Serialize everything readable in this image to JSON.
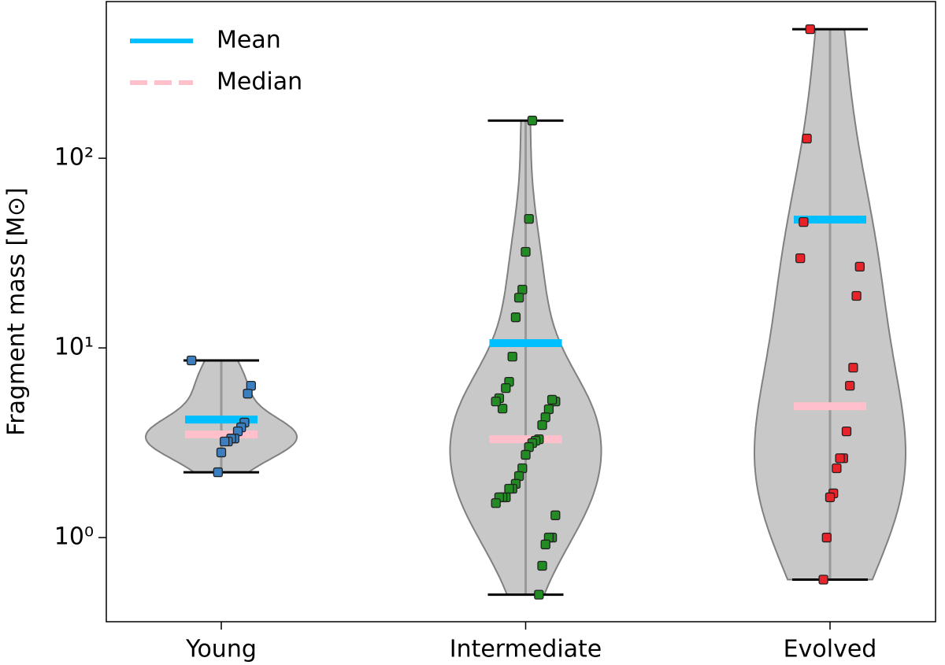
{
  "chart_data": {
    "type": "violin",
    "ylabel": "Fragment mass [M⊙]",
    "ylog": true,
    "ylim": [
      0.36,
      670
    ],
    "yticks": [
      {
        "value": 1,
        "label": "10⁰"
      },
      {
        "value": 10,
        "label": "10¹"
      },
      {
        "value": 100,
        "label": "10²"
      }
    ],
    "categories": [
      "Young",
      "Intermediate",
      "Evolved"
    ],
    "violin_color": "#c8c8c8",
    "legend": "upper left",
    "groups": [
      {
        "color": "#3b7fc0",
        "values": [
          8.59,
          6.32,
          5.74,
          4.04,
          3.81,
          3.63,
          3.33,
          3.33,
          3.21,
          3.21,
          2.81,
          2.21
        ]
      },
      {
        "color": "#238b23",
        "values": [
          158,
          47.9,
          32.1,
          20.3,
          18.4,
          14.5,
          9.0,
          6.63,
          6.14,
          4.79,
          5.43,
          5.22,
          5.22,
          5.33,
          4.75,
          4.31,
          3.92,
          3.3,
          3.24,
          3.15,
          3.0,
          2.73,
          2.32,
          2.11,
          1.92,
          1.81,
          1.81,
          1.63,
          1.63,
          1.63,
          1.52,
          1.31,
          1.0,
          1.0,
          0.92,
          0.71,
          0.5
        ]
      },
      {
        "color": "#e8232a",
        "values": [
          479,
          127,
          46.1,
          29.7,
          26.8,
          18.8,
          7.87,
          6.32,
          3.63,
          2.62,
          2.62,
          2.32,
          1.71,
          1.63,
          1.0,
          0.6
        ]
      }
    ],
    "statistics": [
      {
        "name": "Mean",
        "color": "#00bfff",
        "dashed": false,
        "values": [
          4.19,
          10.6,
          47.5
        ]
      },
      {
        "name": "Median",
        "color": "#ffc0cb",
        "dashed": true,
        "values": [
          3.5,
          3.3,
          4.93
        ]
      }
    ]
  }
}
